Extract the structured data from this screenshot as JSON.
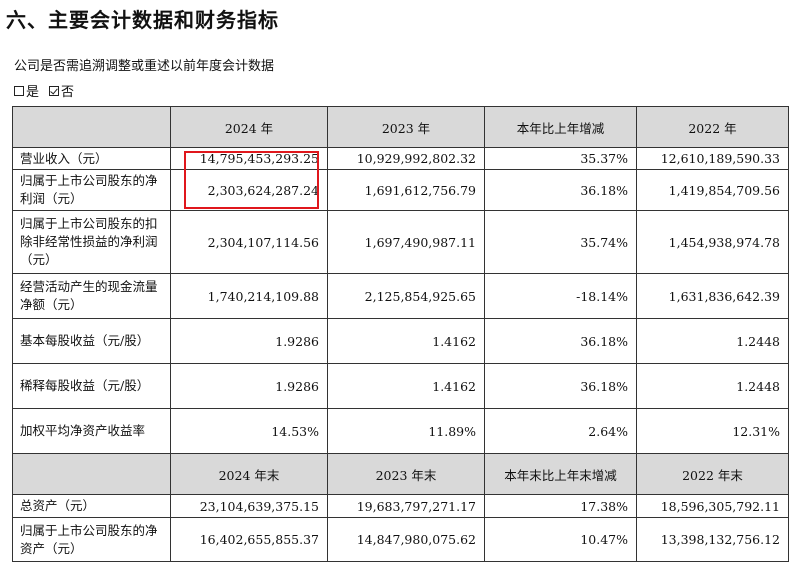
{
  "heading": "六、主要会计数据和财务指标",
  "question": "公司是否需追溯调整或重述以前年度会计数据",
  "options": [
    {
      "label": "是",
      "checked": false
    },
    {
      "label": "否",
      "checked": true
    }
  ],
  "table": {
    "header1": [
      "",
      "2024 年",
      "2023 年",
      "本年比上年增减",
      "2022 年"
    ],
    "rows1": [
      [
        "营业收入（元）",
        "14,795,453,293.25",
        "10,929,992,802.32",
        "35.37%",
        "12,610,189,590.33"
      ],
      [
        "归属于上市公司股东的净利润（元）",
        "2,303,624,287.24",
        "1,691,612,756.79",
        "36.18%",
        "1,419,854,709.56"
      ],
      [
        "归属于上市公司股东的扣除非经常性损益的净利润（元）",
        "2,304,107,114.56",
        "1,697,490,987.11",
        "35.74%",
        "1,454,938,974.78"
      ],
      [
        "经营活动产生的现金流量净额（元）",
        "1,740,214,109.88",
        "2,125,854,925.65",
        "-18.14%",
        "1,631,836,642.39"
      ],
      [
        "基本每股收益（元/股）",
        "1.9286",
        "1.4162",
        "36.18%",
        "1.2448"
      ],
      [
        "稀释每股收益（元/股）",
        "1.9286",
        "1.4162",
        "36.18%",
        "1.2448"
      ],
      [
        "加权平均净资产收益率",
        "14.53%",
        "11.89%",
        "2.64%",
        "12.31%"
      ]
    ],
    "header2": [
      "",
      "2024 年末",
      "2023 年末",
      "本年末比上年末增减",
      "2022 年末"
    ],
    "rows2": [
      [
        "总资产（元）",
        "23,104,639,375.15",
        "19,683,797,271.17",
        "17.38%",
        "18,596,305,792.11"
      ],
      [
        "归属于上市公司股东的净资产（元）",
        "16,402,655,855.37",
        "14,847,980,075.62",
        "10.47%",
        "13,398,132,756.12"
      ]
    ]
  }
}
